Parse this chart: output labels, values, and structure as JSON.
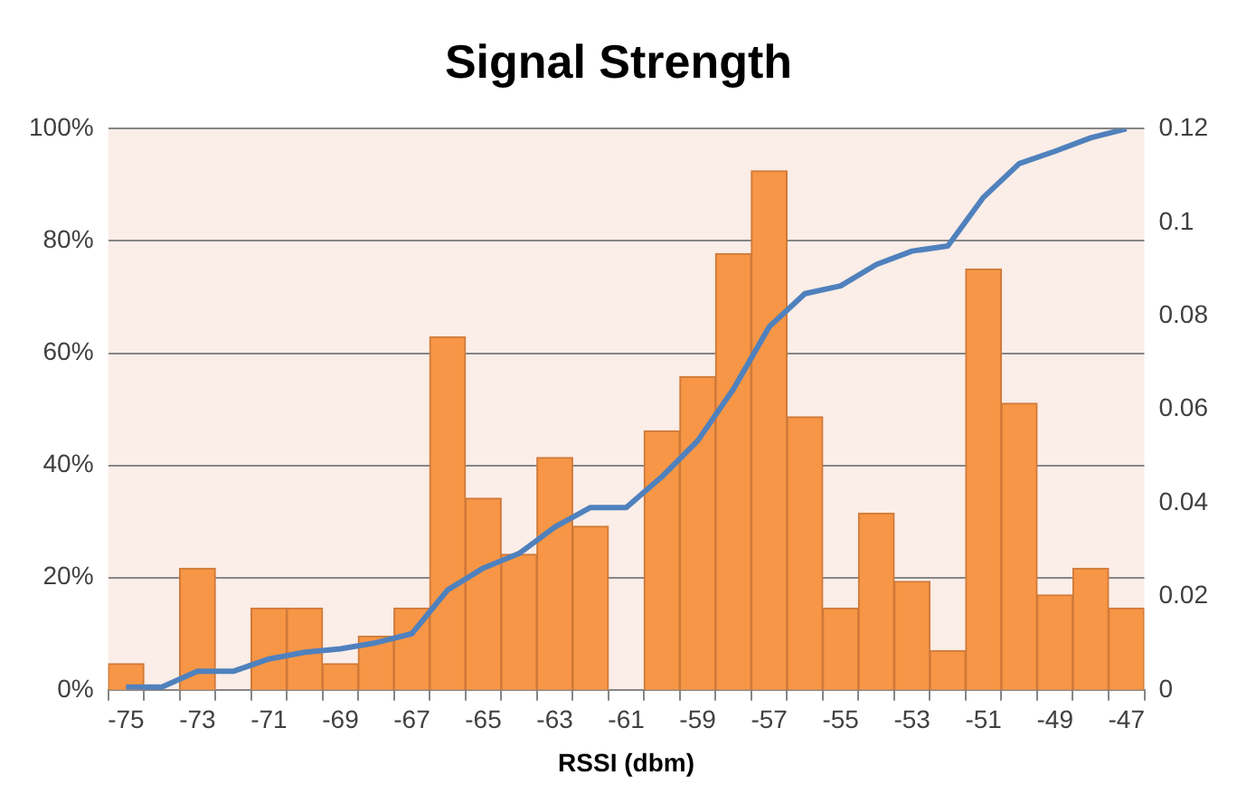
{
  "chart_data": {
    "type": "bar",
    "title": "Signal Strength",
    "xlabel": "RSSI (dbm)",
    "categories": [
      "-75",
      null,
      "-73",
      null,
      "-71",
      null,
      "-69",
      null,
      "-67",
      null,
      "-65",
      null,
      "-63",
      null,
      "-61",
      null,
      "-59",
      null,
      "-57",
      null,
      "-55",
      null,
      "-53",
      null,
      "-51",
      null,
      "-49",
      null,
      "-47"
    ],
    "series": [
      {
        "axis": "y2",
        "color": "#f79646",
        "values": [
          0.0056,
          0,
          0.026,
          0,
          0.0175,
          0.0175,
          0.0056,
          0.0115,
          0.0175,
          0.0755,
          0.041,
          0.029,
          0.0497,
          0.035,
          0,
          0.0554,
          0.067,
          0.0933,
          0.111,
          0.0584,
          0.0175,
          0.0378,
          0.0232,
          0.0084,
          0.09,
          0.0613,
          0.0203,
          0.026,
          0.0175
        ]
      },
      {
        "type": "line",
        "axis": "y",
        "color": "#4f81bd",
        "values": [
          0.5,
          0.5,
          3.3,
          3.3,
          5.5,
          6.7,
          7.3,
          8.4,
          10,
          17.8,
          21.7,
          24.3,
          29,
          32.5,
          32.5,
          38,
          44.4,
          53.6,
          64.7,
          70.6,
          72,
          75.8,
          78.2,
          79.1,
          87.8,
          93.8,
          96,
          98.4,
          100
        ]
      }
    ],
    "ylim": [
      0,
      100
    ],
    "yticks": [
      {
        "value": 0,
        "label": "0%"
      },
      {
        "value": 20,
        "label": "20%"
      },
      {
        "value": 40,
        "label": "40%"
      },
      {
        "value": 60,
        "label": "60%"
      },
      {
        "value": 80,
        "label": "80%"
      },
      {
        "value": 100,
        "label": "100%"
      }
    ],
    "y2lim": [
      0,
      0.12
    ],
    "y2ticks": [
      0,
      0.02,
      0.04,
      0.06,
      0.08,
      0.1,
      0.12
    ],
    "grid": "y",
    "legend": false
  }
}
